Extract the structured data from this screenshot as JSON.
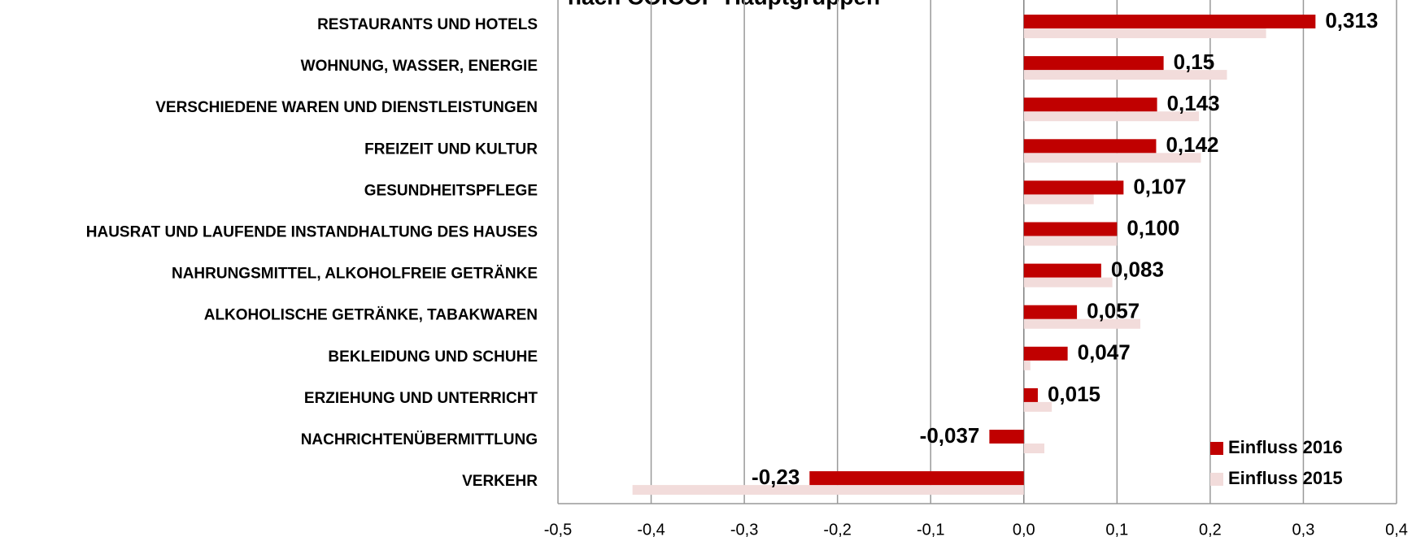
{
  "chart_data": {
    "type": "bar",
    "orientation": "horizontal",
    "title": "nach COICOP-Hauptgruppen",
    "categories": [
      "RESTAURANTS UND HOTELS",
      "WOHNUNG, WASSER, ENERGIE",
      "VERSCHIEDENE WAREN UND DIENSTLEISTUNGEN",
      "FREIZEIT UND KULTUR",
      "GESUNDHEITSPFLEGE",
      "HAUSRAT UND LAUFENDE INSTANDHALTUNG DES HAUSES",
      "NAHRUNGSMITTEL, ALKOHOLFREIE GETRÄNKE",
      "ALKOHOLISCHE GETRÄNKE, TABAKWAREN",
      "BEKLEIDUNG UND SCHUHE",
      "ERZIEHUNG UND UNTERRICHT",
      "NACHRICHTENÜBERMITTLUNG",
      "VERKEHR"
    ],
    "series": [
      {
        "name": "Einfluss 2016",
        "color": "#c00000",
        "values": [
          0.313,
          0.15,
          0.143,
          0.142,
          0.107,
          0.1,
          0.083,
          0.057,
          0.047,
          0.015,
          -0.037,
          -0.23
        ],
        "value_labels": [
          "0,313",
          "0,15",
          "0,143",
          "0,142",
          "0,107",
          "0,100",
          "0,083",
          "0,057",
          "0,047",
          "0,015",
          "-0,037",
          "-0,23"
        ]
      },
      {
        "name": "Einfluss 2015",
        "color": "#f2dcdb",
        "values": [
          0.26,
          0.218,
          0.188,
          0.19,
          0.075,
          0.1,
          0.095,
          0.125,
          0.007,
          0.03,
          0.022,
          -0.42
        ]
      }
    ],
    "xlim": [
      -0.5,
      0.4
    ],
    "xticks": [
      {
        "value": -0.5,
        "label": "-0,5"
      },
      {
        "value": -0.4,
        "label": "-0,4"
      },
      {
        "value": -0.3,
        "label": "-0,3"
      },
      {
        "value": -0.2,
        "label": "-0,2"
      },
      {
        "value": -0.1,
        "label": "-0,1"
      },
      {
        "value": 0,
        "label": "0,0"
      },
      {
        "value": 0.1,
        "label": "0,1"
      },
      {
        "value": 0.2,
        "label": "0,2"
      },
      {
        "value": 0.3,
        "label": "0,3"
      },
      {
        "value": 0.4,
        "label": "0,4"
      }
    ],
    "grid": true,
    "legend": "lower right"
  }
}
